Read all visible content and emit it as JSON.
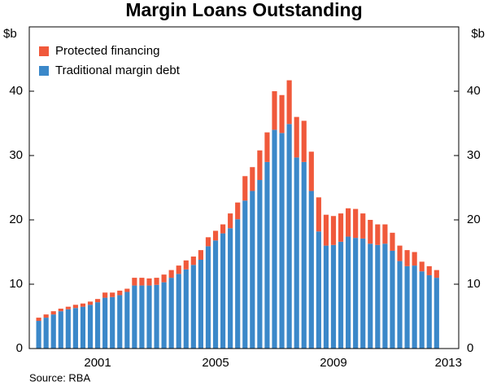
{
  "chart_data": {
    "type": "bar",
    "stacked": true,
    "title": "Margin Loans Outstanding",
    "ylabel": "$b",
    "source": "Source: RBA",
    "x": [
      1999.5,
      1999.75,
      2000,
      2000.25,
      2000.5,
      2000.75,
      2001,
      2001.25,
      2001.5,
      2001.75,
      2002,
      2002.25,
      2002.5,
      2002.75,
      2003,
      2003.25,
      2003.5,
      2003.75,
      2004,
      2004.25,
      2004.5,
      2004.75,
      2005,
      2005.25,
      2005.5,
      2005.75,
      2006,
      2006.25,
      2006.5,
      2006.75,
      2007,
      2007.25,
      2007.5,
      2007.75,
      2008,
      2008.25,
      2008.5,
      2008.75,
      2009,
      2009.25,
      2009.5,
      2009.75,
      2010,
      2010.25,
      2010.5,
      2010.75,
      2011,
      2011.25,
      2011.5,
      2011.75,
      2012,
      2012.25,
      2012.5,
      2012.75,
      2013
    ],
    "series": [
      {
        "name": "Traditional margin debt",
        "color": "#3b88c9",
        "values": [
          4.3,
          4.8,
          5.3,
          5.8,
          6.1,
          6.3,
          6.5,
          6.8,
          7.2,
          7.9,
          8.0,
          8.3,
          8.8,
          9.8,
          9.8,
          9.8,
          9.9,
          10.3,
          11.0,
          11.6,
          12.3,
          13.0,
          13.8,
          15.9,
          16.8,
          17.9,
          18.7,
          20.1,
          23.0,
          24.5,
          26.2,
          29.0,
          34.0,
          33.5,
          34.9,
          29.7,
          29.0,
          24.5,
          18.2,
          16.0,
          16.1,
          16.6,
          17.4,
          17.2,
          17.1,
          16.3,
          16.1,
          16.3,
          15.2,
          13.6,
          12.8,
          12.9,
          12.0,
          11.4,
          11.0
        ]
      },
      {
        "name": "Protected financing",
        "color": "#f0593b",
        "values": [
          0.5,
          0.5,
          0.5,
          0.4,
          0.4,
          0.5,
          0.5,
          0.5,
          0.5,
          0.8,
          0.7,
          0.7,
          0.5,
          1.2,
          1.2,
          1.1,
          1.1,
          1.2,
          1.2,
          1.3,
          1.4,
          1.3,
          1.5,
          1.4,
          1.5,
          1.4,
          2.3,
          2.6,
          3.8,
          3.7,
          4.6,
          4.6,
          6.0,
          5.9,
          6.8,
          6.3,
          6.4,
          6.1,
          5.3,
          4.8,
          4.5,
          4.4,
          4.4,
          4.5,
          3.9,
          3.7,
          3.2,
          3.0,
          2.8,
          2.4,
          2.5,
          2.1,
          1.5,
          1.4,
          1.2
        ]
      }
    ],
    "xlim": [
      1999.18,
      2013.75
    ],
    "xticks": [
      {
        "value": 2001.5,
        "label": "2001"
      },
      {
        "value": 2005.5,
        "label": "2005"
      },
      {
        "value": 2009.5,
        "label": "2009"
      },
      {
        "value": 2013.4,
        "label": "2013"
      }
    ],
    "ylim": [
      0,
      50
    ],
    "yticks": [
      0,
      10,
      20,
      30,
      40
    ],
    "grid": false,
    "legend": "upper left"
  }
}
